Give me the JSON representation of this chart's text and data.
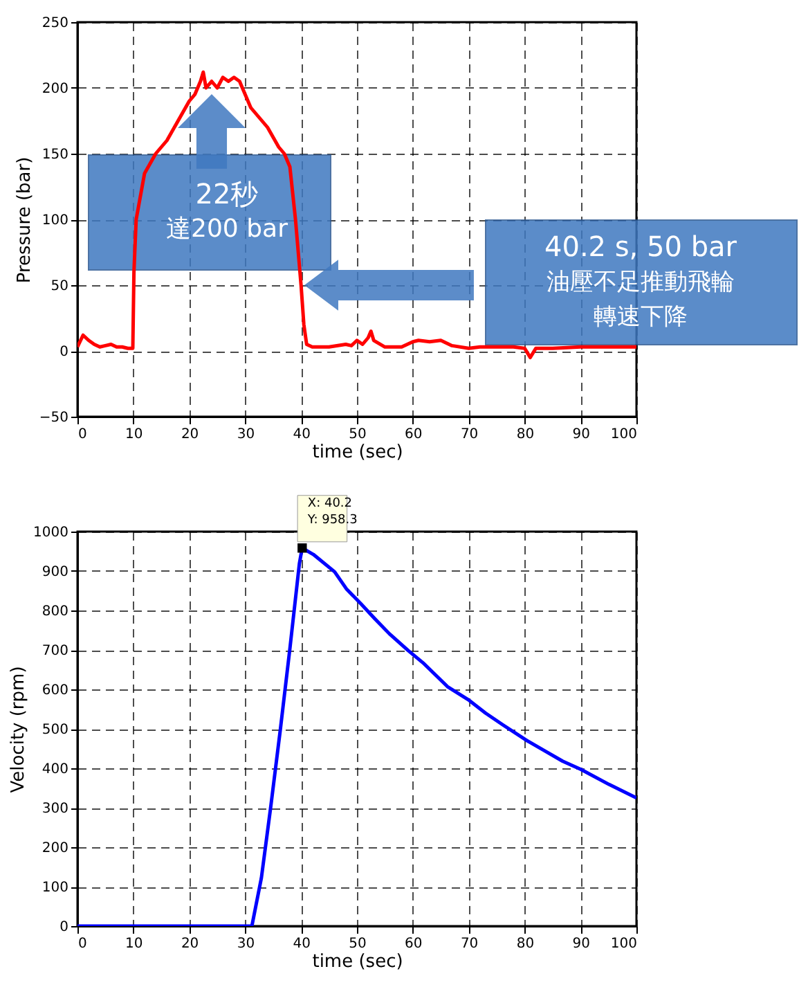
{
  "chart_data": [
    {
      "type": "line",
      "xlabel": "time (sec)",
      "ylabel": "Pressure (bar)",
      "xlim": [
        0,
        100
      ],
      "ylim": [
        -50,
        250
      ],
      "xticks": [
        0,
        10,
        20,
        30,
        40,
        50,
        60,
        70,
        80,
        90,
        100
      ],
      "yticks": [
        -50,
        0,
        50,
        100,
        150,
        200,
        250
      ],
      "grid": true,
      "series": [
        {
          "color": "#ff0000",
          "x": [
            0,
            1,
            2,
            3,
            4,
            5,
            6,
            7,
            8,
            9,
            9.9,
            10.1,
            10.5,
            12,
            14,
            16,
            18,
            20,
            21,
            22,
            22.5,
            23,
            24,
            25,
            26,
            27,
            28,
            29,
            30,
            31,
            32,
            34,
            36,
            37,
            38,
            39,
            40,
            40.5,
            41,
            42,
            45,
            48,
            49,
            50,
            51,
            52,
            52.5,
            53,
            55,
            58,
            60,
            61,
            63,
            65,
            67,
            70,
            72,
            75,
            78,
            80,
            81,
            82,
            85,
            90,
            95,
            100
          ],
          "values": [
            3,
            12,
            8,
            5,
            3,
            4,
            5,
            3,
            3,
            2,
            2,
            60,
            100,
            135,
            150,
            160,
            175,
            190,
            195,
            205,
            212,
            200,
            205,
            200,
            208,
            205,
            208,
            205,
            195,
            185,
            180,
            170,
            155,
            150,
            140,
            100,
            50,
            20,
            5,
            3,
            3,
            5,
            4,
            8,
            5,
            10,
            15,
            8,
            3,
            3,
            7,
            8,
            7,
            8,
            4,
            2,
            3,
            3,
            3,
            2,
            -5,
            2,
            2,
            3,
            3,
            3
          ]
        }
      ],
      "annotations": [
        "22秒",
        "達200 bar",
        "40.2 s, 50 bar",
        "油壓不足推動飛輪",
        "轉速下降"
      ]
    },
    {
      "type": "line",
      "xlabel": "time (sec)",
      "ylabel": "Velocity (rpm)",
      "xlim": [
        0,
        100
      ],
      "ylim": [
        0,
        1000
      ],
      "xticks": [
        0,
        10,
        20,
        30,
        40,
        50,
        60,
        70,
        80,
        90,
        100
      ],
      "yticks": [
        0,
        100,
        200,
        300,
        400,
        500,
        600,
        700,
        800,
        900,
        1000
      ],
      "grid": true,
      "series": [
        {
          "color": "#0000ff",
          "x": [
            0,
            10,
            20,
            30,
            31.2,
            32.9,
            34.6,
            36.3,
            38,
            39.7,
            40.2,
            42.2,
            46,
            48.1,
            50.7,
            53.2,
            55.8,
            59.2,
            62,
            66.2,
            69.9,
            73,
            76.1,
            80.2,
            83.5,
            86.8,
            90.1,
            95.1,
            100
          ],
          "values": [
            0,
            0,
            0,
            0,
            0,
            122,
            305,
            499,
            703,
            919,
            958.3,
            942,
            898,
            855,
            817,
            779,
            741,
            698,
            665,
            607,
            574,
            540,
            510,
            472,
            445,
            418,
            397,
            359,
            325
          ]
        },
        {
          "type": "scatter",
          "marker": "square",
          "color": "#000000",
          "x": [
            40.2
          ],
          "values": [
            958.3
          ]
        }
      ],
      "annotations": [
        {
          "text": "X: 40.2\nY: 958.3",
          "x": 40.2,
          "y": 958.3
        }
      ]
    }
  ]
}
